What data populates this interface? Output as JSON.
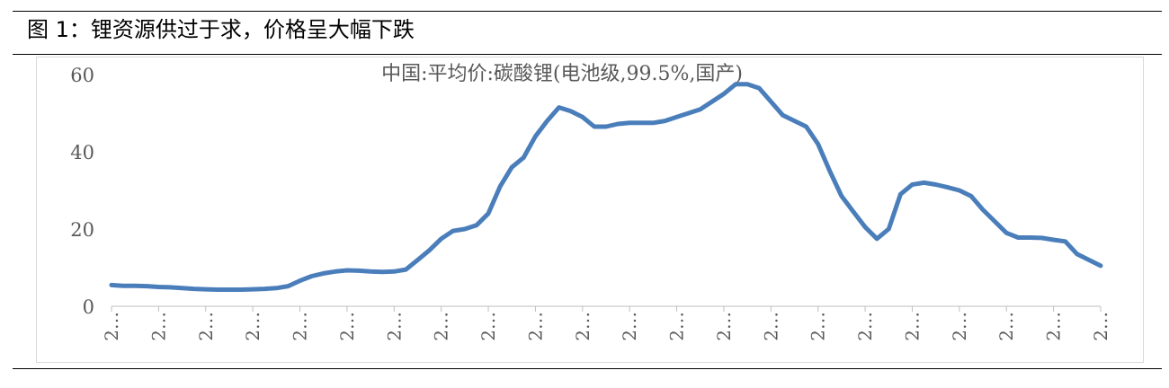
{
  "figure": {
    "title": "图 1：锂资源供过于求，价格呈大幅下跌"
  },
  "chart_data": {
    "type": "line",
    "title": "中国:平均价:碳酸锂(电池级,99.5%,国产)",
    "xlabel": "",
    "ylabel": "",
    "ylim": [
      0,
      60
    ],
    "y_ticks": [
      0,
      20,
      40,
      60
    ],
    "x_tick_labels": [
      "2…",
      "2…",
      "2…",
      "2…",
      "2…",
      "2…",
      "2…",
      "2…",
      "2…",
      "2…",
      "2…",
      "2…",
      "2…",
      "2…",
      "2…",
      "2…",
      "2…",
      "2…",
      "2…",
      "2…",
      "2…",
      "2…"
    ],
    "grid": false,
    "legend": "none",
    "line_color": "#4a7ebb",
    "series": [
      {
        "x": [
          0,
          1,
          2,
          3,
          4,
          5,
          6,
          7,
          8,
          9,
          10,
          11,
          12,
          13,
          14,
          15,
          16,
          17,
          18,
          19,
          20,
          21,
          22,
          23,
          24,
          25,
          26,
          27,
          28,
          29,
          30,
          31,
          32,
          33,
          34,
          35,
          36,
          37,
          38,
          39,
          40,
          41,
          42,
          43,
          44,
          45,
          46,
          47,
          48,
          49,
          50,
          51,
          52,
          53,
          54,
          55,
          56,
          57,
          58,
          59,
          60,
          61,
          62,
          63,
          64,
          65,
          66,
          67,
          68,
          69,
          70,
          71,
          72,
          73,
          74,
          75,
          76,
          77,
          78,
          79,
          80,
          81,
          82,
          83,
          84
        ],
        "values": [
          5.5,
          5.3,
          5.3,
          5.2,
          5.0,
          4.9,
          4.7,
          4.5,
          4.4,
          4.3,
          4.3,
          4.3,
          4.4,
          4.5,
          4.7,
          5.2,
          6.6,
          7.8,
          8.5,
          9.0,
          9.3,
          9.2,
          9.0,
          8.9,
          9.0,
          9.5,
          12.0,
          14.5,
          17.5,
          19.5,
          20.0,
          21.0,
          24.0,
          31.0,
          36.0,
          38.5,
          44.0,
          48.0,
          51.5,
          50.5,
          49.0,
          46.5,
          46.5,
          47.2,
          47.5,
          47.5,
          47.5,
          48.0,
          49.0,
          50.0,
          51.0,
          53.0,
          55.0,
          57.5,
          57.5,
          56.5,
          53.0,
          49.5,
          48.0,
          46.5,
          42.0,
          35.0,
          28.5,
          24.5,
          20.5,
          17.5,
          20.0,
          29.0,
          31.5,
          32.0,
          31.5,
          30.8,
          30.0,
          28.5,
          25.0,
          22.0,
          19.0,
          17.8,
          17.8,
          17.7,
          17.2,
          16.8,
          13.5,
          12.0,
          10.5
        ]
      }
    ]
  }
}
